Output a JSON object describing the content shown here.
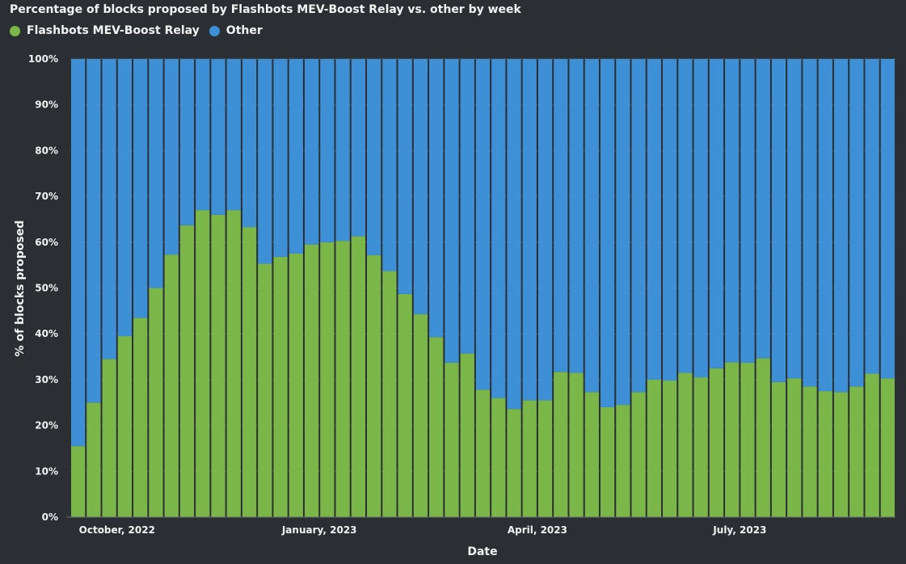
{
  "chart_data": {
    "type": "bar",
    "stacked": true,
    "title": "Percentage of blocks proposed by Flashbots MEV-Boost Relay vs. other by week",
    "xlabel": "Date",
    "ylabel": "% of blocks proposed",
    "ylim": [
      0,
      100
    ],
    "yticks": [
      "0%",
      "10%",
      "20%",
      "30%",
      "40%",
      "50%",
      "60%",
      "70%",
      "80%",
      "90%",
      "100%"
    ],
    "xtick_labels": [
      {
        "label": "October, 2022",
        "index": 2.5
      },
      {
        "label": "January, 2023",
        "index": 15.5
      },
      {
        "label": "April, 2023",
        "index": 29.5
      },
      {
        "label": "July, 2023",
        "index": 42.5
      }
    ],
    "legend_position": "top-left",
    "series": [
      {
        "name": "Flashbots MEV-Boost Relay",
        "color": "#7ab648",
        "values": [
          15.5,
          25,
          34.5,
          39.5,
          43.5,
          50,
          57.3,
          63.7,
          67,
          66,
          67,
          63.3,
          55.3,
          56.8,
          57.5,
          59.5,
          60,
          60.3,
          61.3,
          57.2,
          53.7,
          48.7,
          44.3,
          39.3,
          33.7,
          35.7,
          27.8,
          26,
          23.6,
          25.5,
          25.5,
          31.7,
          31.5,
          27.3,
          24,
          24.5,
          27.3,
          30,
          29.8,
          31.5,
          30.5,
          32.5,
          33.8,
          33.7,
          34.7,
          29.5,
          30.3,
          28.5,
          27.5,
          27.3,
          28.5,
          31.3,
          30.3
        ]
      },
      {
        "name": "Other",
        "color": "#3d8fd6",
        "values": [
          84.5,
          75,
          65.5,
          60.5,
          56.5,
          50,
          42.7,
          36.3,
          33,
          34,
          33,
          36.7,
          44.7,
          43.2,
          42.5,
          40.5,
          40,
          39.7,
          38.7,
          42.8,
          46.3,
          51.3,
          55.7,
          60.7,
          66.3,
          64.3,
          72.2,
          74,
          76.4,
          74.5,
          74.5,
          68.3,
          68.5,
          72.7,
          76,
          75.5,
          72.7,
          70,
          70.2,
          68.5,
          69.5,
          67.5,
          66.2,
          66.3,
          65.3,
          70.5,
          69.7,
          71.5,
          72.5,
          72.7,
          71.5,
          68.7,
          69.7
        ]
      }
    ]
  }
}
